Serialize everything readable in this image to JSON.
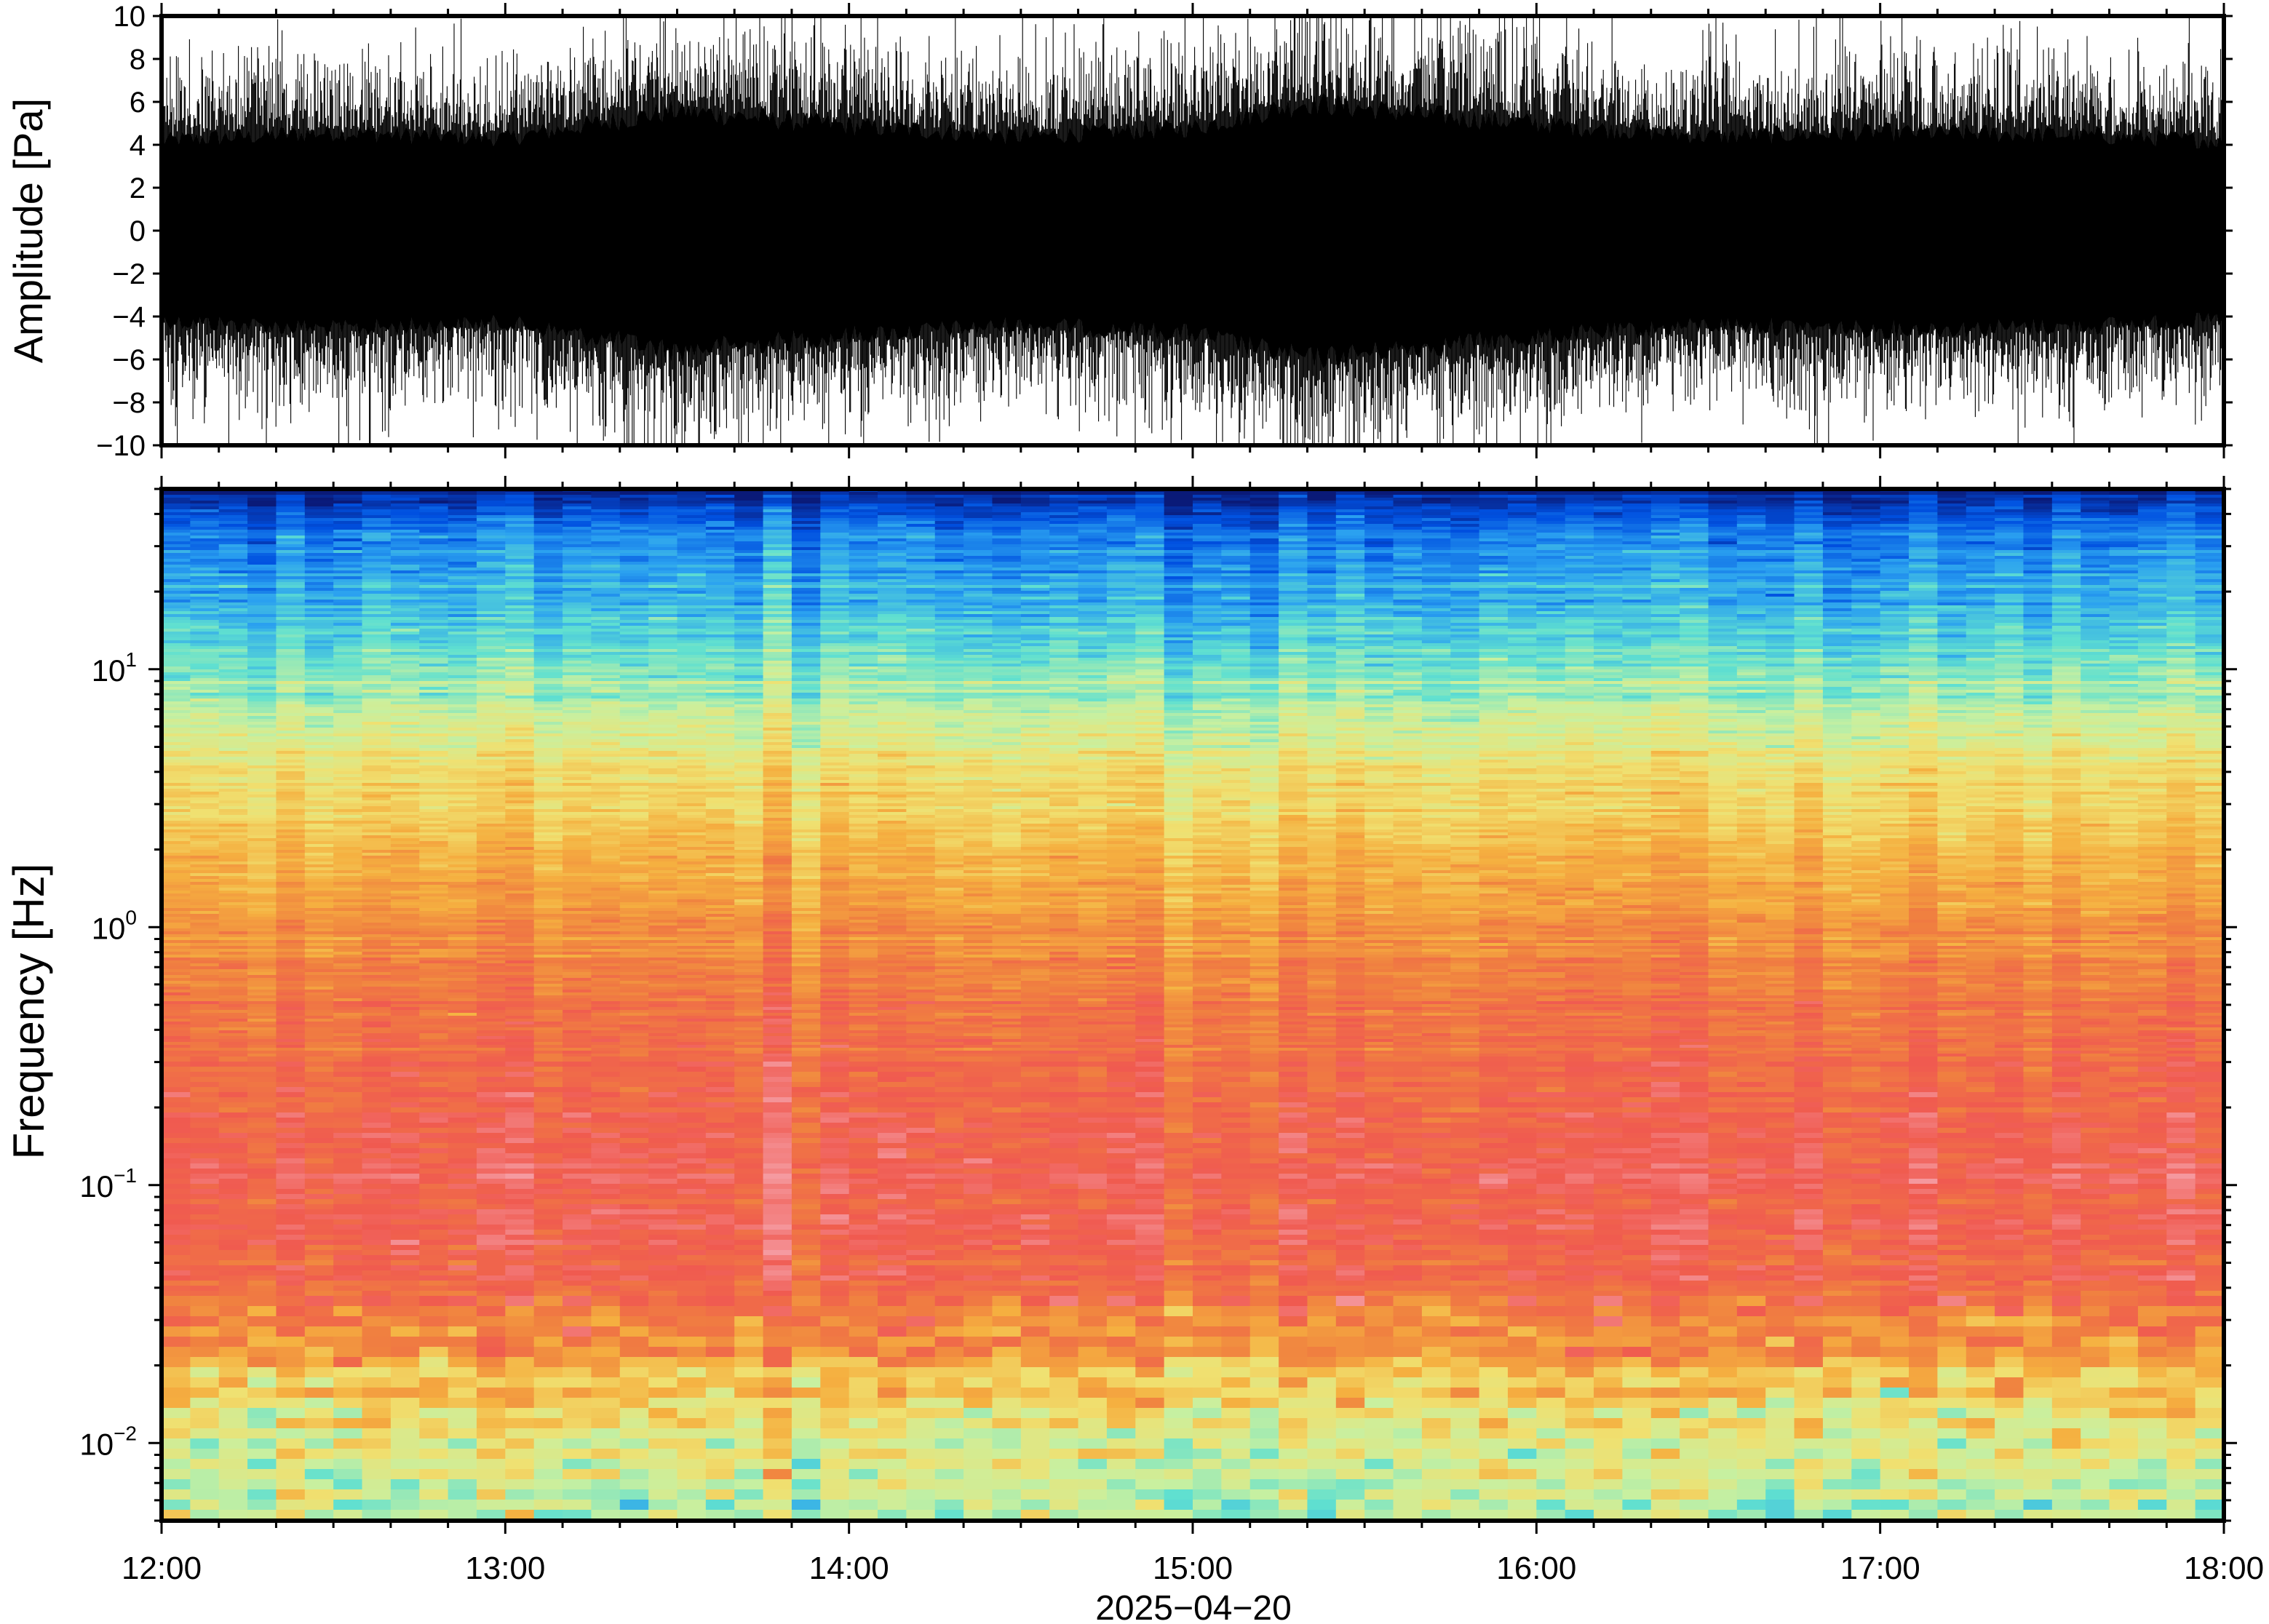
{
  "chart_data": [
    {
      "type": "line",
      "panel": "waveform",
      "ylabel": "Amplitude [Pa]",
      "ylim": [
        -10,
        10
      ],
      "y_ticks": [
        -10,
        -8,
        -6,
        -4,
        -2,
        0,
        2,
        4,
        6,
        8,
        10
      ],
      "y_tick_labels": [
        "−10",
        "−8",
        "−6",
        "−4",
        "−2",
        "0",
        "2",
        "4",
        "6",
        "8",
        "10"
      ],
      "x_range": [
        "12:00",
        "18:00"
      ],
      "line_color": "#000000",
      "envelope": [
        {
          "x": "12:00",
          "y": 4.2
        },
        {
          "x": "12:30",
          "y": 4.6
        },
        {
          "x": "13:00",
          "y": 4.3
        },
        {
          "x": "13:30",
          "y": 5.6
        },
        {
          "x": "14:00",
          "y": 4.9
        },
        {
          "x": "14:30",
          "y": 4.4
        },
        {
          "x": "15:00",
          "y": 4.8
        },
        {
          "x": "15:20",
          "y": 6.0
        },
        {
          "x": "15:40",
          "y": 5.4
        },
        {
          "x": "16:00",
          "y": 5.0
        },
        {
          "x": "16:30",
          "y": 4.4
        },
        {
          "x": "17:00",
          "y": 4.6
        },
        {
          "x": "17:30",
          "y": 4.5
        },
        {
          "x": "18:00",
          "y": 4.2
        }
      ]
    },
    {
      "type": "heatmap",
      "panel": "spectrogram",
      "ylabel": "Frequency [Hz]",
      "y_scale": "log",
      "ylim": [
        0.005,
        50
      ],
      "y_ticks": [
        0.01,
        0.1,
        1,
        10
      ],
      "y_tick_labels": [
        {
          "base": "10",
          "exp": "−2"
        },
        {
          "base": "10",
          "exp": "−1"
        },
        {
          "base": "10",
          "exp": "0"
        },
        {
          "base": "10",
          "exp": "1"
        }
      ],
      "xlabel": "2025−04−20",
      "x_ticks": [
        "12:00",
        "13:00",
        "14:00",
        "15:00",
        "16:00",
        "17:00",
        "18:00"
      ],
      "colormap": "jet-like (blue low power → red / pink high power)",
      "colormap_stops": [
        "#0a1a78",
        "#0050e0",
        "#2aa0f0",
        "#60e0d0",
        "#c8f0a0",
        "#f0e070",
        "#f5b040",
        "#f08040",
        "#f05a50",
        "#f59aa0"
      ],
      "power_profile": [
        {
          "f": 50,
          "level": 0.0
        },
        {
          "f": 40,
          "level": 0.12
        },
        {
          "f": 25,
          "level": 0.22
        },
        {
          "f": 12,
          "level": 0.33
        },
        {
          "f": 7,
          "level": 0.44
        },
        {
          "f": 4,
          "level": 0.55
        },
        {
          "f": 2,
          "level": 0.64
        },
        {
          "f": 1,
          "level": 0.74
        },
        {
          "f": 0.4,
          "level": 0.82
        },
        {
          "f": 0.1,
          "level": 0.9
        },
        {
          "f": 0.04,
          "level": 0.84
        },
        {
          "f": 0.025,
          "level": 0.74
        },
        {
          "f": 0.018,
          "level": 0.62
        },
        {
          "f": 0.01,
          "level": 0.5
        },
        {
          "f": 0.005,
          "level": 0.42
        }
      ]
    }
  ]
}
